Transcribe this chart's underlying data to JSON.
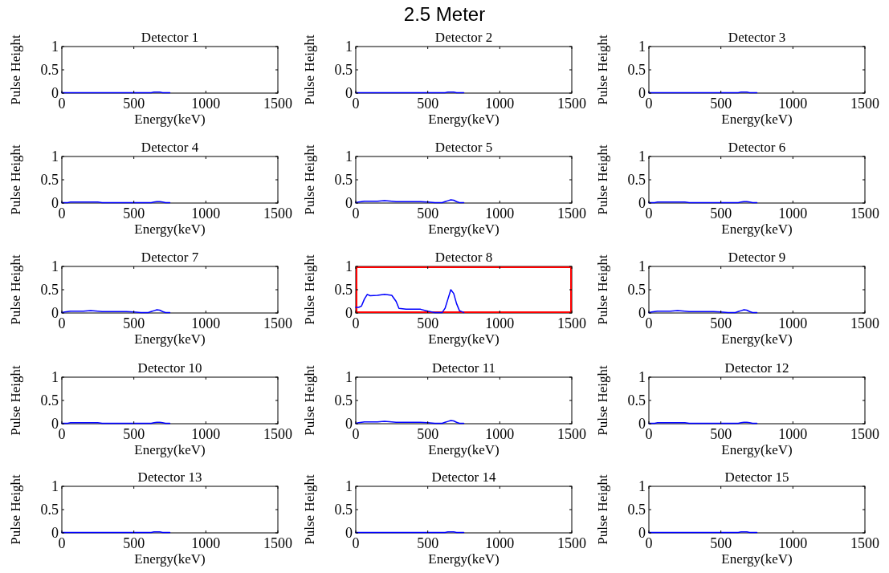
{
  "chart_data": [
    {
      "type": "line",
      "title": "Detector 1",
      "xlabel": "Energy(keV)",
      "ylabel": "Pulse Height",
      "annotations": [
        "2.5 Meter"
      ],
      "xlim": [
        0,
        1500
      ],
      "xticks": [
        0,
        500,
        1000,
        1500
      ],
      "ylim": [
        0,
        1
      ],
      "yticks": [
        0,
        0.5,
        1
      ],
      "x": [
        0,
        20,
        40,
        60,
        80,
        100,
        150,
        200,
        250,
        280,
        300,
        350,
        400,
        450,
        500,
        550,
        600,
        620,
        640,
        660,
        680,
        700,
        720,
        750
      ],
      "series": [
        {
          "color": "#0000ff",
          "values": [
            0.01,
            0.01,
            0.01,
            0.01,
            0.01,
            0.01,
            0.01,
            0.01,
            0.01,
            0.01,
            0.01,
            0.01,
            0.01,
            0.01,
            0.01,
            0.01,
            0.01,
            0.01,
            0.02,
            0.02,
            0.02,
            0.01,
            0.01,
            0.01
          ]
        }
      ]
    },
    {
      "type": "line",
      "title": "Detector 2",
      "xlabel": "Energy(keV)",
      "ylabel": "Pulse Height",
      "xlim": [
        0,
        1500
      ],
      "xticks": [
        0,
        500,
        1000,
        1500
      ],
      "ylim": [
        0,
        1
      ],
      "yticks": [
        0,
        0.5,
        1
      ],
      "x": [
        0,
        20,
        40,
        60,
        80,
        100,
        150,
        200,
        250,
        280,
        300,
        350,
        400,
        450,
        500,
        550,
        600,
        620,
        640,
        660,
        680,
        700,
        720,
        750
      ],
      "series": [
        {
          "color": "#0000ff",
          "values": [
            0.01,
            0.01,
            0.01,
            0.01,
            0.01,
            0.01,
            0.01,
            0.01,
            0.01,
            0.01,
            0.01,
            0.01,
            0.01,
            0.01,
            0.01,
            0.01,
            0.01,
            0.01,
            0.02,
            0.02,
            0.02,
            0.01,
            0.01,
            0.01
          ]
        }
      ]
    },
    {
      "type": "line",
      "title": "Detector 3",
      "xlabel": "Energy(keV)",
      "ylabel": "Pulse Height",
      "xlim": [
        0,
        1500
      ],
      "xticks": [
        0,
        500,
        1000,
        1500
      ],
      "ylim": [
        0,
        1
      ],
      "yticks": [
        0,
        0.5,
        1
      ],
      "x": [
        0,
        20,
        40,
        60,
        80,
        100,
        150,
        200,
        250,
        280,
        300,
        350,
        400,
        450,
        500,
        550,
        600,
        620,
        640,
        660,
        680,
        700,
        720,
        750
      ],
      "series": [
        {
          "color": "#0000ff",
          "values": [
            0.01,
            0.01,
            0.01,
            0.01,
            0.01,
            0.01,
            0.01,
            0.01,
            0.01,
            0.01,
            0.01,
            0.01,
            0.01,
            0.01,
            0.01,
            0.01,
            0.01,
            0.01,
            0.02,
            0.02,
            0.02,
            0.01,
            0.01,
            0.01
          ]
        }
      ]
    },
    {
      "type": "line",
      "title": "Detector 4",
      "xlabel": "Energy(keV)",
      "ylabel": "Pulse Height",
      "xlim": [
        0,
        1500
      ],
      "xticks": [
        0,
        500,
        1000,
        1500
      ],
      "ylim": [
        0,
        1
      ],
      "yticks": [
        0,
        0.5,
        1
      ],
      "x": [
        0,
        20,
        40,
        60,
        80,
        100,
        150,
        200,
        250,
        280,
        300,
        350,
        400,
        450,
        500,
        550,
        600,
        620,
        640,
        660,
        680,
        700,
        720,
        750
      ],
      "series": [
        {
          "color": "#0000ff",
          "values": [
            0.01,
            0.01,
            0.01,
            0.02,
            0.02,
            0.02,
            0.02,
            0.02,
            0.02,
            0.01,
            0.01,
            0.01,
            0.01,
            0.01,
            0.01,
            0.01,
            0.01,
            0.01,
            0.02,
            0.03,
            0.03,
            0.02,
            0.01,
            0.01
          ]
        }
      ]
    },
    {
      "type": "line",
      "title": "Detector 5",
      "xlabel": "Energy(keV)",
      "ylabel": "Pulse Height",
      "xlim": [
        0,
        1500
      ],
      "xticks": [
        0,
        500,
        1000,
        1500
      ],
      "ylim": [
        0,
        1
      ],
      "yticks": [
        0,
        0.5,
        1
      ],
      "x": [
        0,
        20,
        40,
        60,
        80,
        100,
        150,
        200,
        250,
        280,
        300,
        350,
        400,
        450,
        500,
        550,
        600,
        620,
        640,
        660,
        680,
        700,
        720,
        750
      ],
      "series": [
        {
          "color": "#0000ff",
          "values": [
            0.01,
            0.02,
            0.03,
            0.04,
            0.04,
            0.04,
            0.04,
            0.05,
            0.04,
            0.03,
            0.03,
            0.03,
            0.03,
            0.03,
            0.02,
            0.01,
            0.01,
            0.03,
            0.05,
            0.07,
            0.06,
            0.03,
            0.01,
            0.01
          ]
        }
      ]
    },
    {
      "type": "line",
      "title": "Detector 6",
      "xlabel": "Energy(keV)",
      "ylabel": "Pulse Height",
      "xlim": [
        0,
        1500
      ],
      "xticks": [
        0,
        500,
        1000,
        1500
      ],
      "ylim": [
        0,
        1
      ],
      "yticks": [
        0,
        0.5,
        1
      ],
      "x": [
        0,
        20,
        40,
        60,
        80,
        100,
        150,
        200,
        250,
        280,
        300,
        350,
        400,
        450,
        500,
        550,
        600,
        620,
        640,
        660,
        680,
        700,
        720,
        750
      ],
      "series": [
        {
          "color": "#0000ff",
          "values": [
            0.01,
            0.01,
            0.01,
            0.02,
            0.02,
            0.02,
            0.02,
            0.02,
            0.02,
            0.01,
            0.01,
            0.01,
            0.01,
            0.01,
            0.01,
            0.01,
            0.01,
            0.01,
            0.02,
            0.03,
            0.03,
            0.02,
            0.01,
            0.01
          ]
        }
      ]
    },
    {
      "type": "line",
      "title": "Detector 7",
      "xlabel": "Energy(keV)",
      "ylabel": "Pulse Height",
      "xlim": [
        0,
        1500
      ],
      "xticks": [
        0,
        500,
        1000,
        1500
      ],
      "ylim": [
        0,
        1
      ],
      "yticks": [
        0,
        0.5,
        1
      ],
      "x": [
        0,
        20,
        40,
        60,
        80,
        100,
        150,
        200,
        250,
        280,
        300,
        350,
        400,
        450,
        500,
        550,
        600,
        620,
        640,
        660,
        680,
        700,
        720,
        750
      ],
      "series": [
        {
          "color": "#0000ff",
          "values": [
            0.01,
            0.02,
            0.03,
            0.04,
            0.04,
            0.04,
            0.04,
            0.05,
            0.04,
            0.03,
            0.03,
            0.03,
            0.03,
            0.03,
            0.02,
            0.01,
            0.01,
            0.03,
            0.05,
            0.07,
            0.06,
            0.03,
            0.01,
            0.01
          ]
        }
      ]
    },
    {
      "type": "line",
      "title": "Detector 8",
      "xlabel": "Energy(keV)",
      "ylabel": "Pulse Height",
      "xlim": [
        0,
        1500
      ],
      "xticks": [
        0,
        500,
        1000,
        1500
      ],
      "ylim": [
        0,
        1
      ],
      "yticks": [
        0,
        0.5,
        1
      ],
      "x": [
        0,
        20,
        40,
        60,
        80,
        100,
        150,
        200,
        250,
        280,
        300,
        350,
        400,
        450,
        500,
        550,
        600,
        620,
        640,
        660,
        680,
        700,
        720,
        750
      ],
      "series": [
        {
          "color": "#0000ff",
          "values": [
            0.12,
            0.12,
            0.15,
            0.3,
            0.4,
            0.37,
            0.38,
            0.4,
            0.38,
            0.25,
            0.1,
            0.08,
            0.08,
            0.08,
            0.04,
            0.01,
            0.01,
            0.1,
            0.3,
            0.5,
            0.42,
            0.2,
            0.05,
            0.01
          ]
        }
      ]
    },
    {
      "type": "line",
      "title": "Detector 9",
      "xlabel": "Energy(keV)",
      "ylabel": "Pulse Height",
      "xlim": [
        0,
        1500
      ],
      "xticks": [
        0,
        500,
        1000,
        1500
      ],
      "ylim": [
        0,
        1
      ],
      "yticks": [
        0,
        0.5,
        1
      ],
      "x": [
        0,
        20,
        40,
        60,
        80,
        100,
        150,
        200,
        250,
        280,
        300,
        350,
        400,
        450,
        500,
        550,
        600,
        620,
        640,
        660,
        680,
        700,
        720,
        750
      ],
      "series": [
        {
          "color": "#0000ff",
          "values": [
            0.01,
            0.02,
            0.03,
            0.04,
            0.04,
            0.04,
            0.04,
            0.05,
            0.04,
            0.03,
            0.03,
            0.03,
            0.03,
            0.03,
            0.02,
            0.01,
            0.01,
            0.03,
            0.05,
            0.07,
            0.06,
            0.03,
            0.01,
            0.01
          ]
        }
      ]
    },
    {
      "type": "line",
      "title": "Detector 10",
      "xlabel": "Energy(keV)",
      "ylabel": "Pulse Height",
      "xlim": [
        0,
        1500
      ],
      "xticks": [
        0,
        500,
        1000,
        1500
      ],
      "ylim": [
        0,
        1
      ],
      "yticks": [
        0,
        0.5,
        1
      ],
      "x": [
        0,
        20,
        40,
        60,
        80,
        100,
        150,
        200,
        250,
        280,
        300,
        350,
        400,
        450,
        500,
        550,
        600,
        620,
        640,
        660,
        680,
        700,
        720,
        750
      ],
      "series": [
        {
          "color": "#0000ff",
          "values": [
            0.01,
            0.01,
            0.01,
            0.02,
            0.02,
            0.02,
            0.02,
            0.02,
            0.02,
            0.01,
            0.01,
            0.01,
            0.01,
            0.01,
            0.01,
            0.01,
            0.01,
            0.01,
            0.02,
            0.03,
            0.03,
            0.02,
            0.01,
            0.01
          ]
        }
      ]
    },
    {
      "type": "line",
      "title": "Detector 11",
      "xlabel": "Energy(keV)",
      "ylabel": "Pulse Height",
      "xlim": [
        0,
        1500
      ],
      "xticks": [
        0,
        500,
        1000,
        1500
      ],
      "ylim": [
        0,
        1
      ],
      "yticks": [
        0,
        0.5,
        1
      ],
      "x": [
        0,
        20,
        40,
        60,
        80,
        100,
        150,
        200,
        250,
        280,
        300,
        350,
        400,
        450,
        500,
        550,
        600,
        620,
        640,
        660,
        680,
        700,
        720,
        750
      ],
      "series": [
        {
          "color": "#0000ff",
          "values": [
            0.01,
            0.02,
            0.03,
            0.04,
            0.04,
            0.04,
            0.04,
            0.05,
            0.04,
            0.03,
            0.03,
            0.03,
            0.03,
            0.03,
            0.02,
            0.01,
            0.01,
            0.03,
            0.05,
            0.07,
            0.06,
            0.03,
            0.01,
            0.01
          ]
        }
      ]
    },
    {
      "type": "line",
      "title": "Detector 12",
      "xlabel": "Energy(keV)",
      "ylabel": "Pulse Height",
      "xlim": [
        0,
        1500
      ],
      "xticks": [
        0,
        500,
        1000,
        1500
      ],
      "ylim": [
        0,
        1
      ],
      "yticks": [
        0,
        0.5,
        1
      ],
      "x": [
        0,
        20,
        40,
        60,
        80,
        100,
        150,
        200,
        250,
        280,
        300,
        350,
        400,
        450,
        500,
        550,
        600,
        620,
        640,
        660,
        680,
        700,
        720,
        750
      ],
      "series": [
        {
          "color": "#0000ff",
          "values": [
            0.01,
            0.01,
            0.01,
            0.02,
            0.02,
            0.02,
            0.02,
            0.02,
            0.02,
            0.01,
            0.01,
            0.01,
            0.01,
            0.01,
            0.01,
            0.01,
            0.01,
            0.01,
            0.02,
            0.03,
            0.03,
            0.02,
            0.01,
            0.01
          ]
        }
      ]
    },
    {
      "type": "line",
      "title": "Detector 13",
      "xlabel": "Energy(keV)",
      "ylabel": "Pulse Height",
      "xlim": [
        0,
        1500
      ],
      "xticks": [
        0,
        500,
        1000,
        1500
      ],
      "ylim": [
        0,
        1
      ],
      "yticks": [
        0,
        0.5,
        1
      ],
      "x": [
        0,
        20,
        40,
        60,
        80,
        100,
        150,
        200,
        250,
        280,
        300,
        350,
        400,
        450,
        500,
        550,
        600,
        620,
        640,
        660,
        680,
        700,
        720,
        750
      ],
      "series": [
        {
          "color": "#0000ff",
          "values": [
            0.01,
            0.01,
            0.01,
            0.01,
            0.01,
            0.01,
            0.01,
            0.01,
            0.01,
            0.01,
            0.01,
            0.01,
            0.01,
            0.01,
            0.01,
            0.01,
            0.01,
            0.01,
            0.02,
            0.02,
            0.02,
            0.01,
            0.01,
            0.01
          ]
        }
      ]
    },
    {
      "type": "line",
      "title": "Detector 14",
      "xlabel": "Energy(keV)",
      "ylabel": "Pulse Height",
      "xlim": [
        0,
        1500
      ],
      "xticks": [
        0,
        500,
        1000,
        1500
      ],
      "ylim": [
        0,
        1
      ],
      "yticks": [
        0,
        0.5,
        1
      ],
      "x": [
        0,
        20,
        40,
        60,
        80,
        100,
        150,
        200,
        250,
        280,
        300,
        350,
        400,
        450,
        500,
        550,
        600,
        620,
        640,
        660,
        680,
        700,
        720,
        750
      ],
      "series": [
        {
          "color": "#0000ff",
          "values": [
            0.01,
            0.01,
            0.01,
            0.01,
            0.01,
            0.01,
            0.01,
            0.01,
            0.01,
            0.01,
            0.01,
            0.01,
            0.01,
            0.01,
            0.01,
            0.01,
            0.01,
            0.01,
            0.02,
            0.02,
            0.02,
            0.01,
            0.01,
            0.01
          ]
        }
      ]
    },
    {
      "type": "line",
      "title": "Detector 15",
      "xlabel": "Energy(keV)",
      "ylabel": "Pulse Height",
      "xlim": [
        0,
        1500
      ],
      "xticks": [
        0,
        500,
        1000,
        1500
      ],
      "ylim": [
        0,
        1
      ],
      "yticks": [
        0,
        0.5,
        1
      ],
      "x": [
        0,
        20,
        40,
        60,
        80,
        100,
        150,
        200,
        250,
        280,
        300,
        350,
        400,
        450,
        500,
        550,
        600,
        620,
        640,
        660,
        680,
        700,
        720,
        750
      ],
      "series": [
        {
          "color": "#0000ff",
          "values": [
            0.01,
            0.01,
            0.01,
            0.01,
            0.01,
            0.01,
            0.01,
            0.01,
            0.01,
            0.01,
            0.01,
            0.01,
            0.01,
            0.01,
            0.01,
            0.01,
            0.01,
            0.01,
            0.02,
            0.02,
            0.02,
            0.01,
            0.01,
            0.01
          ]
        }
      ]
    }
  ]
}
